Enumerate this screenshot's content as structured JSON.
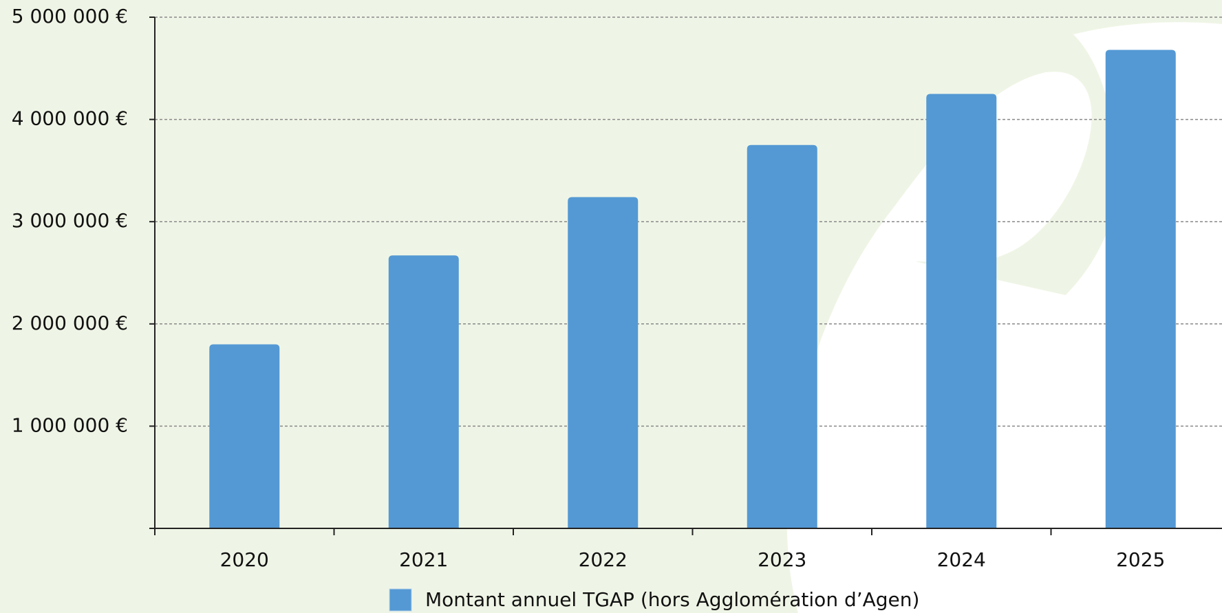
{
  "chart_data": {
    "type": "bar",
    "categories": [
      "2020",
      "2021",
      "2022",
      "2023",
      "2024",
      "2025"
    ],
    "series": [
      {
        "name": "Montant annuel TGAP (hors Agglomération d’Agen)",
        "color": "#5499d4",
        "values": [
          1800000,
          2670000,
          3240000,
          3750000,
          4250000,
          4680000
        ]
      }
    ],
    "ylim": [
      0,
      5000000
    ],
    "yticks": [
      {
        "value": 1000000,
        "label": "1 000 000 €"
      },
      {
        "value": 2000000,
        "label": "2 000 000 €"
      },
      {
        "value": 3000000,
        "label": "3 000 000 €"
      },
      {
        "value": 4000000,
        "label": "4 000 000 €"
      },
      {
        "value": 5000000,
        "label": "5 000 000 €"
      }
    ],
    "grid": true,
    "legend": "bottom"
  }
}
